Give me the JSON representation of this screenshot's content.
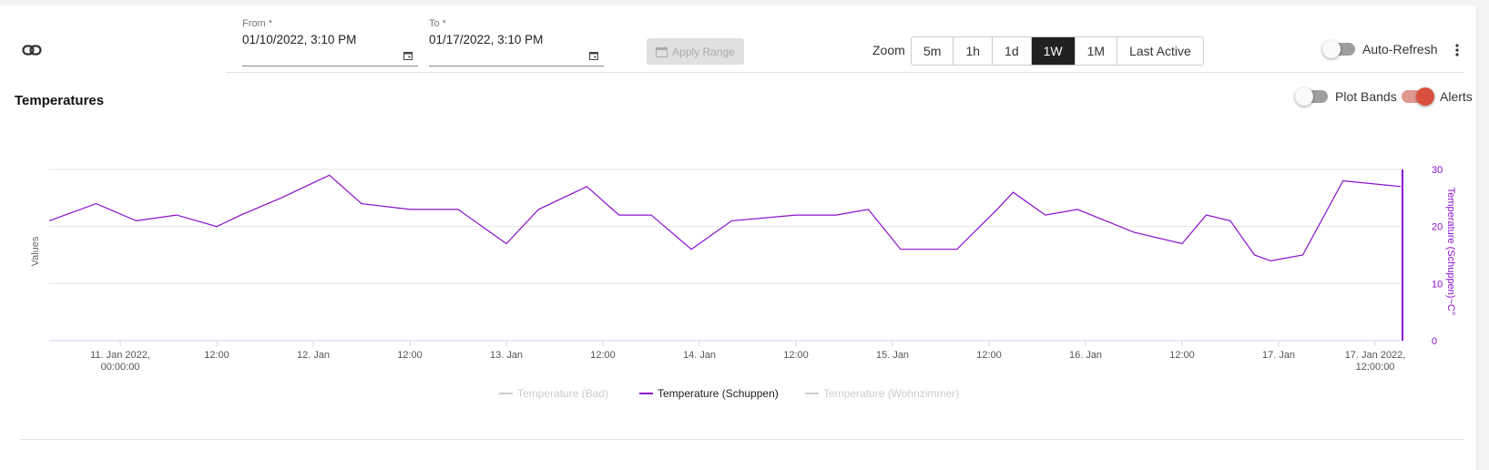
{
  "toolbar": {
    "from_label": "From *",
    "from_value": "01/10/2022, 3:10 PM",
    "to_label": "To *",
    "to_value": "01/17/2022, 3:10 PM",
    "apply_label": "Apply Range",
    "zoom_label": "Zoom",
    "zoom_options": [
      "5m",
      "1h",
      "1d",
      "1W",
      "1M",
      "Last Active"
    ],
    "zoom_selected": "1W",
    "auto_refresh_label": "Auto-Refresh",
    "auto_refresh_on": false
  },
  "panel": {
    "title": "Temperatures",
    "plot_bands_label": "Plot Bands",
    "plot_bands_on": false,
    "alerts_label": "Alerts",
    "alerts_on": true
  },
  "colors": {
    "series": "#8a0fcc",
    "alert": "#d9503f",
    "active_zoom": "#212121"
  },
  "chart_data": {
    "type": "line",
    "ylabel_left": "Values",
    "ylabel_right": "Temperature (Schuppen)~C°",
    "ylim_right": [
      0,
      30
    ],
    "y_ticks_right": [
      "30",
      "20",
      "10",
      "0"
    ],
    "x_range": [
      "2022-01-10T15:10",
      "2022-01-17T15:10"
    ],
    "x_ticks": [
      {
        "t": "2022-01-11T00:00",
        "label": "11. Jan 2022,",
        "label2": "00:00:00"
      },
      {
        "t": "2022-01-11T12:00",
        "label": "12:00"
      },
      {
        "t": "2022-01-12T00:00",
        "label": "12. Jan"
      },
      {
        "t": "2022-01-12T12:00",
        "label": "12:00"
      },
      {
        "t": "2022-01-13T00:00",
        "label": "13. Jan"
      },
      {
        "t": "2022-01-13T12:00",
        "label": "12:00"
      },
      {
        "t": "2022-01-14T00:00",
        "label": "14. Jan"
      },
      {
        "t": "2022-01-14T12:00",
        "label": "12:00"
      },
      {
        "t": "2022-01-15T00:00",
        "label": "15. Jan"
      },
      {
        "t": "2022-01-15T12:00",
        "label": "12:00"
      },
      {
        "t": "2022-01-16T00:00",
        "label": "16. Jan"
      },
      {
        "t": "2022-01-16T12:00",
        "label": "12:00"
      },
      {
        "t": "2022-01-17T00:00",
        "label": "17. Jan"
      },
      {
        "t": "2022-01-17T12:00",
        "label": "17. Jan 2022,",
        "label2": "12:00:00"
      }
    ],
    "grid": true,
    "legend_position": "bottom-center",
    "series": [
      {
        "name": "Temperature (Bad)",
        "visible": false,
        "values": []
      },
      {
        "name": "Temperature (Schuppen)",
        "visible": true,
        "x": [
          "2022-01-10T15:10",
          "2022-01-10T21:00",
          "2022-01-11T02:00",
          "2022-01-11T07:00",
          "2022-01-11T12:00",
          "2022-01-11T15:00",
          "2022-01-11T20:00",
          "2022-01-12T02:00",
          "2022-01-12T06:00",
          "2022-01-12T12:00",
          "2022-01-12T18:00",
          "2022-01-13T00:00",
          "2022-01-13T04:00",
          "2022-01-13T10:00",
          "2022-01-13T14:00",
          "2022-01-13T18:00",
          "2022-01-13T23:00",
          "2022-01-14T04:00",
          "2022-01-14T12:00",
          "2022-01-14T17:00",
          "2022-01-14T21:00",
          "2022-01-15T01:00",
          "2022-01-15T08:00",
          "2022-01-15T13:00",
          "2022-01-15T15:00",
          "2022-01-15T19:00",
          "2022-01-15T23:00",
          "2022-01-16T06:00",
          "2022-01-16T12:00",
          "2022-01-16T15:00",
          "2022-01-16T18:00",
          "2022-01-16T21:00",
          "2022-01-16T23:00",
          "2022-01-17T03:00",
          "2022-01-17T08:00",
          "2022-01-17T15:10"
        ],
        "values": [
          21,
          24,
          21,
          22,
          20,
          22,
          25,
          29,
          24,
          23,
          23,
          17,
          23,
          27,
          22,
          22,
          16,
          21,
          22,
          22,
          23,
          16,
          16,
          23,
          26,
          22,
          23,
          19,
          17,
          22,
          21,
          15,
          14,
          15,
          28,
          27
        ]
      },
      {
        "name": "Temperature (Wohnzimmer)",
        "visible": false,
        "values": []
      }
    ]
  }
}
